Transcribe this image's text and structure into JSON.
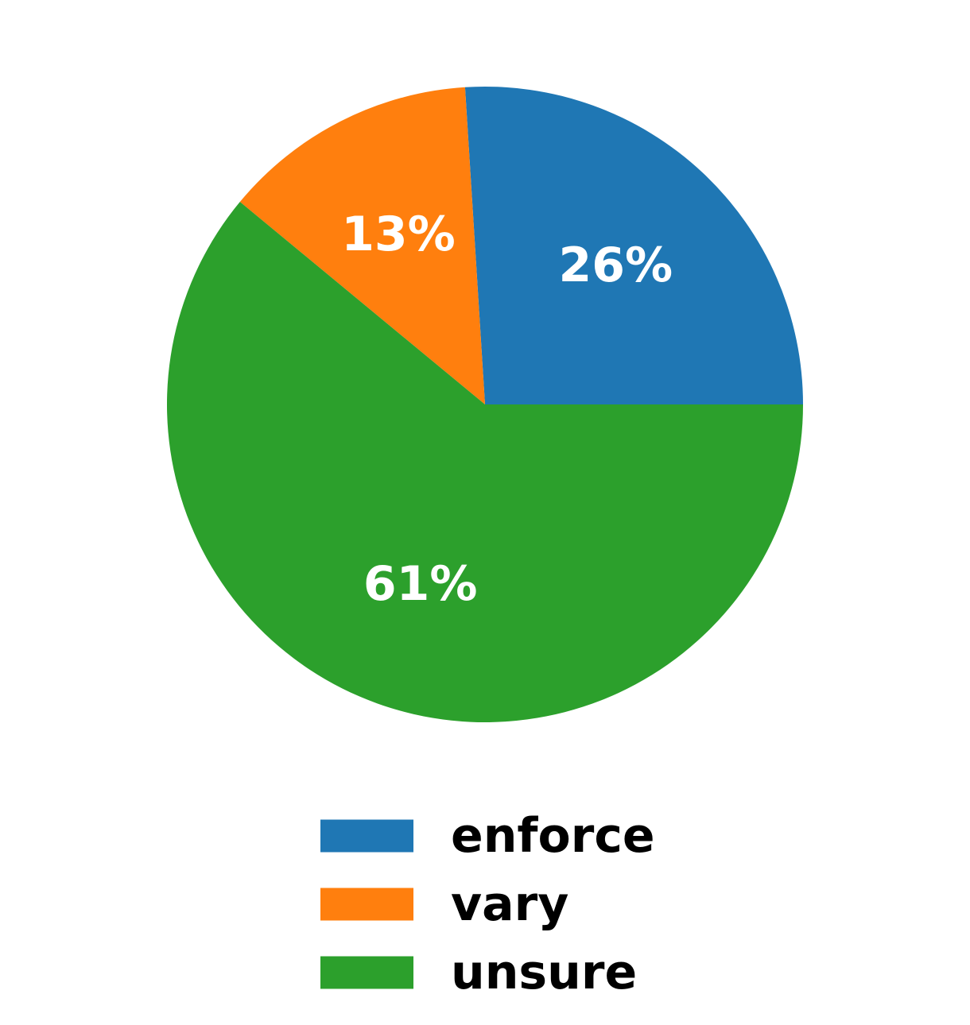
{
  "chart_data": {
    "type": "pie",
    "categories": [
      "enforce",
      "vary",
      "unsure"
    ],
    "values": [
      26,
      13,
      61
    ],
    "data_labels": [
      "26%",
      "13%",
      "61%"
    ],
    "colors": [
      "#1f77b4",
      "#ff7f0e",
      "#2ca02c"
    ],
    "start_angle_deg": 0,
    "direction": "counterclockwise",
    "legend": {
      "placement": "bottom-center",
      "entries": [
        "enforce",
        "vary",
        "unsure"
      ]
    },
    "title": ""
  }
}
